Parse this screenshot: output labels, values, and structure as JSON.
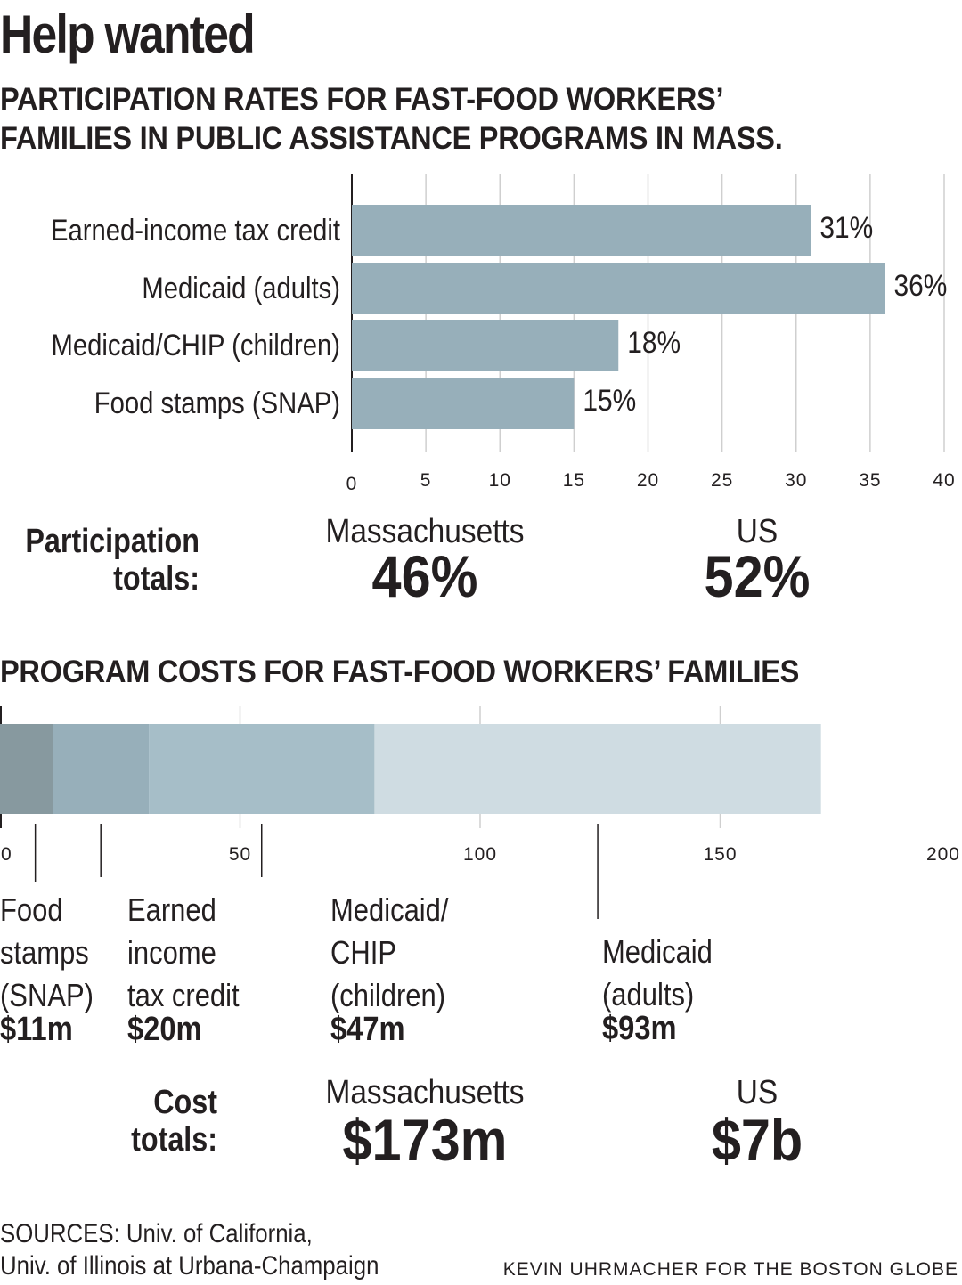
{
  "header": {
    "title": "Help wanted",
    "subtitle_line1": "PARTICIPATION RATES FOR FAST-FOOD WORKERS’",
    "subtitle_line2": "FAMILIES IN PUBLIC ASSISTANCE PROGRAMS IN MASS."
  },
  "chart_data": [
    {
      "type": "bar",
      "orientation": "horizontal",
      "title": "PARTICIPATION RATES FOR FAST-FOOD WORKERS’ FAMILIES IN PUBLIC ASSISTANCE PROGRAMS IN MASS.",
      "categories": [
        "Earned-income tax credit",
        "Medicaid (adults)",
        "Medicaid/CHIP (children)",
        "Food stamps (SNAP)"
      ],
      "values": [
        31,
        36,
        18,
        15
      ],
      "value_labels": [
        "31%",
        "36%",
        "18%",
        "15%"
      ],
      "xlim": [
        0,
        40
      ],
      "xticks": [
        "0",
        "5",
        "10",
        "15",
        "20",
        "25",
        "30",
        "35",
        "40"
      ],
      "grid": true,
      "bar_color": "#97afba"
    },
    {
      "type": "bar",
      "orientation": "horizontal",
      "stacked": true,
      "title": "PROGRAM COSTS FOR FAST-FOOD WORKERS’ FAMILIES",
      "series": [
        {
          "label_lines": [
            "Food",
            "stamps",
            "(SNAP)"
          ],
          "value": 11,
          "value_label": "$11m",
          "color": "#87999f"
        },
        {
          "label_lines": [
            "Earned",
            "income",
            "tax credit"
          ],
          "value": 20,
          "value_label": "$20m",
          "color": "#97afba"
        },
        {
          "label_lines": [
            "Medicaid/",
            "CHIP",
            "(children)"
          ],
          "value": 47,
          "value_label": "$47m",
          "color": "#a6bec8"
        },
        {
          "label_lines": [
            "Medicaid",
            "(adults)"
          ],
          "value": 93,
          "value_label": "$93m",
          "color": "#cfdce2"
        }
      ],
      "xlim": [
        0,
        200
      ],
      "xticks": [
        "0",
        "50",
        "100",
        "150",
        "200"
      ],
      "grid": true
    }
  ],
  "participation_totals": {
    "label_line1": "Participation",
    "label_line2": "totals:",
    "ma_head": "Massachusetts",
    "ma_value": "46%",
    "us_head": "US",
    "us_value": "52%"
  },
  "costs_section": {
    "title": "PROGRAM COSTS FOR FAST-FOOD WORKERS’ FAMILIES"
  },
  "cost_totals": {
    "label_line1": "Cost",
    "label_line2": "totals:",
    "ma_head": "Massachusetts",
    "ma_value": "$173m",
    "us_head": "US",
    "us_value": "$7b"
  },
  "footer": {
    "sources_line1": "SOURCES: Univ. of California,",
    "sources_line2": "Univ. of Illinois at Urbana-Champaign",
    "credit": "KEVIN UHRMACHER FOR THE BOSTON GLOBE"
  }
}
